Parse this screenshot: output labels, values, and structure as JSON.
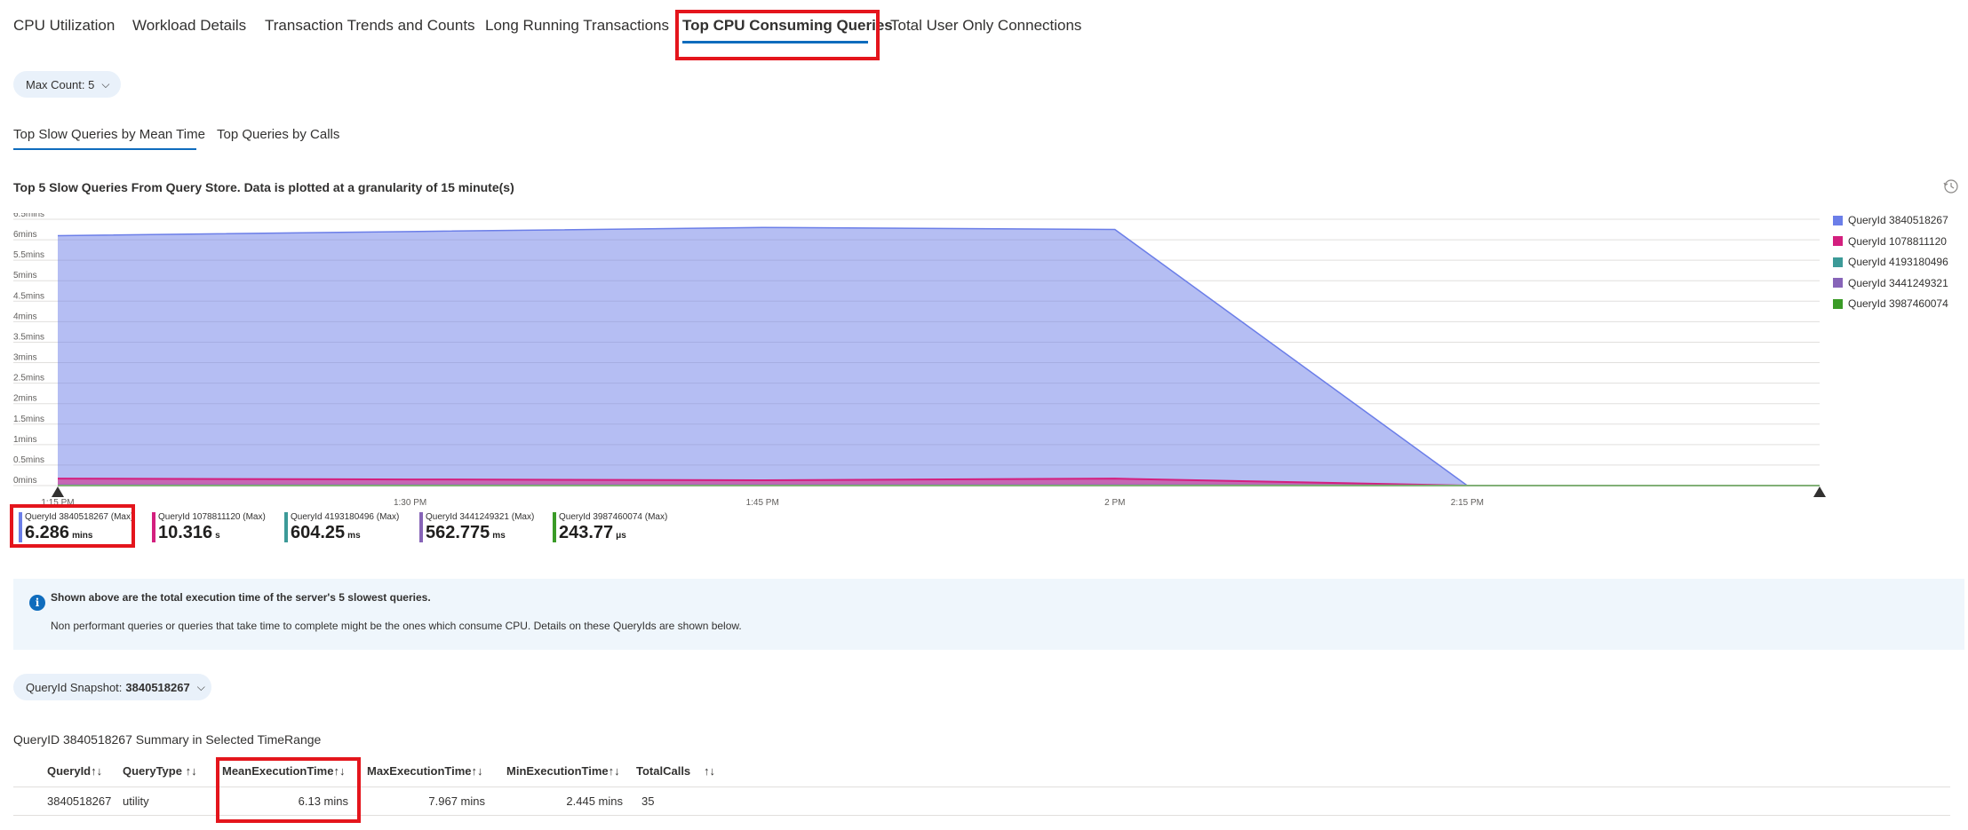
{
  "tabs": [
    {
      "label": "CPU Utilization"
    },
    {
      "label": "Workload Details"
    },
    {
      "label": "Transaction Trends and Counts"
    },
    {
      "label": "Long Running Transactions"
    },
    {
      "label": "Top CPU Consuming Queries"
    },
    {
      "label": "Total User Only Connections"
    }
  ],
  "max_count": {
    "label": "Max Count: 5"
  },
  "subtabs": [
    {
      "label": "Top Slow Queries by Mean Time"
    },
    {
      "label": "Top Queries by Calls"
    }
  ],
  "chart_title": "Top 5 Slow Queries From Query Store. Data is plotted at a granularity of 15 minute(s)",
  "chart_data": {
    "type": "area",
    "x": [
      "1:15 PM",
      "1:30 PM",
      "1:45 PM",
      "2 PM",
      "2:15 PM",
      "2:30 PM"
    ],
    "x_tick_labels": [
      "1:15 PM",
      "1:30 PM",
      "1:45 PM",
      "2 PM",
      "2:15 PM"
    ],
    "y_ticks": [
      "0mins",
      "0.5mins",
      "1mins",
      "1.5mins",
      "2mins",
      "2.5mins",
      "3mins",
      "3.5mins",
      "4mins",
      "4.5mins",
      "5mins",
      "5.5mins",
      "6mins",
      "6.5mins"
    ],
    "ylim": [
      0,
      6.5
    ],
    "y_unit": "mins",
    "series": [
      {
        "name": "QueryId 3840518267",
        "color": "#6b7ee8",
        "values": [
          6.1,
          6.2,
          6.3,
          6.25,
          0,
          0
        ]
      },
      {
        "name": "QueryId 1078811120",
        "color": "#d31f7e",
        "values": [
          0.17,
          0.15,
          0.13,
          0.17,
          0,
          0
        ]
      },
      {
        "name": "QueryId 4193180496",
        "color": "#3c9a98",
        "values": [
          0.01,
          0.01,
          0.01,
          0.01,
          0,
          0
        ]
      },
      {
        "name": "QueryId 3441249321",
        "color": "#8764b8",
        "values": [
          0.01,
          0.01,
          0.01,
          0.01,
          0,
          0
        ]
      },
      {
        "name": "QueryId 3987460074",
        "color": "#3a9b27",
        "values": [
          0,
          0,
          0,
          0,
          0,
          0
        ]
      }
    ]
  },
  "stats": [
    {
      "label": "QueryId 3840518267 (Max)",
      "value": "6.286",
      "unit": "mins",
      "color": "#6b7ee8"
    },
    {
      "label": "QueryId 1078811120 (Max)",
      "value": "10.316",
      "unit": "s",
      "color": "#d31f7e"
    },
    {
      "label": "QueryId 4193180496 (Max)",
      "value": "604.25",
      "unit": "ms",
      "color": "#3c9a98"
    },
    {
      "label": "QueryId 3441249321 (Max)",
      "value": "562.775",
      "unit": "ms",
      "color": "#8764b8"
    },
    {
      "label": "QueryId 3987460074 (Max)",
      "value": "243.77",
      "unit": "μs",
      "color": "#3a9b27"
    }
  ],
  "info": {
    "line1": "Shown above are the total execution time of the server's 5 slowest queries.",
    "line2": "Non performant queries or queries that take time to complete might be the ones which consume CPU. Details on these QueryIds are shown below."
  },
  "snapshot": {
    "label": "QueryId Snapshot: ",
    "value": "3840518267"
  },
  "summary_title": "QueryID 3840518267 Summary in Selected TimeRange",
  "table": {
    "headers": [
      "QueryId",
      "QueryType",
      "MeanExecutionTime",
      "MaxExecutionTime",
      "MinExecutionTime",
      "TotalCalls"
    ],
    "sort_glyph": "↑↓",
    "rows": [
      {
        "queryid": "3840518267",
        "querytype": "utility",
        "mean": "6.13 mins",
        "max": "7.967 mins",
        "min": "2.445 mins",
        "calls": "35"
      }
    ]
  }
}
